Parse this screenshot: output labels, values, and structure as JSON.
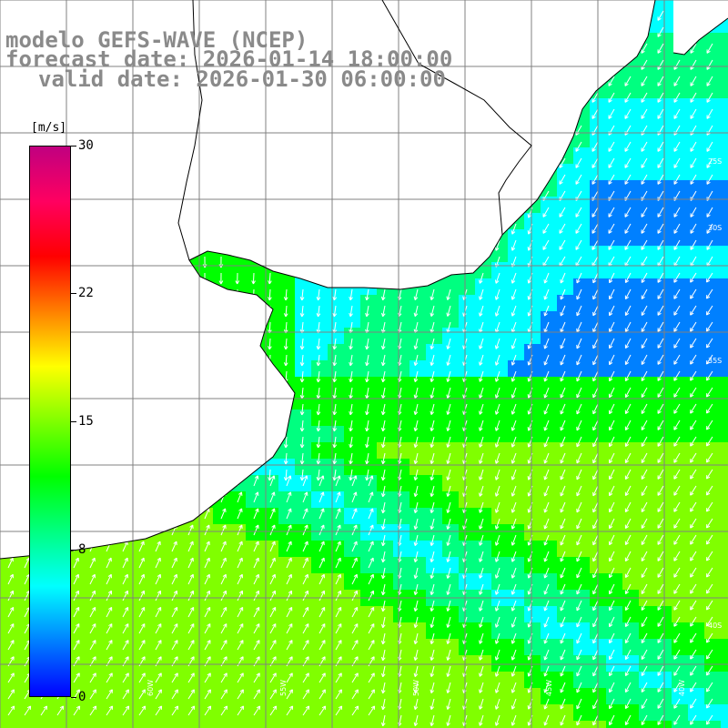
{
  "title": {
    "line1": "modelo GEFS-WAVE (NCEP)",
    "line2": "forecast date: 2026-01-14 18:00:00",
    "line3": "valid date: 2026-01-30 06:00:00"
  },
  "colorbar": {
    "unit": "[m/s]",
    "min": 0,
    "max": 30,
    "ticks": [
      "30",
      "22",
      "15",
      "8",
      "0"
    ],
    "tick_values": [
      30,
      22,
      15,
      8,
      0
    ],
    "stops": [
      "#0000ff",
      "#0080ff",
      "#00ffff",
      "#00ff80",
      "#00ff00",
      "#80ff00",
      "#ffff00",
      "#ff8000",
      "#ff0000",
      "#ff0060",
      "#c00080"
    ]
  },
  "map": {
    "grid": true,
    "land_color": "#ffffff",
    "wind_vectors": "white arrows",
    "lat_labels": [
      "25S",
      "30S",
      "35S",
      "40S"
    ],
    "lon_labels": [
      "60W",
      "55W",
      "50W",
      "45W",
      "40W"
    ]
  },
  "colors": {
    "title": "#8a8a8a",
    "grid": "#808080",
    "coast": "#000000",
    "arrow": "#ffffff"
  }
}
